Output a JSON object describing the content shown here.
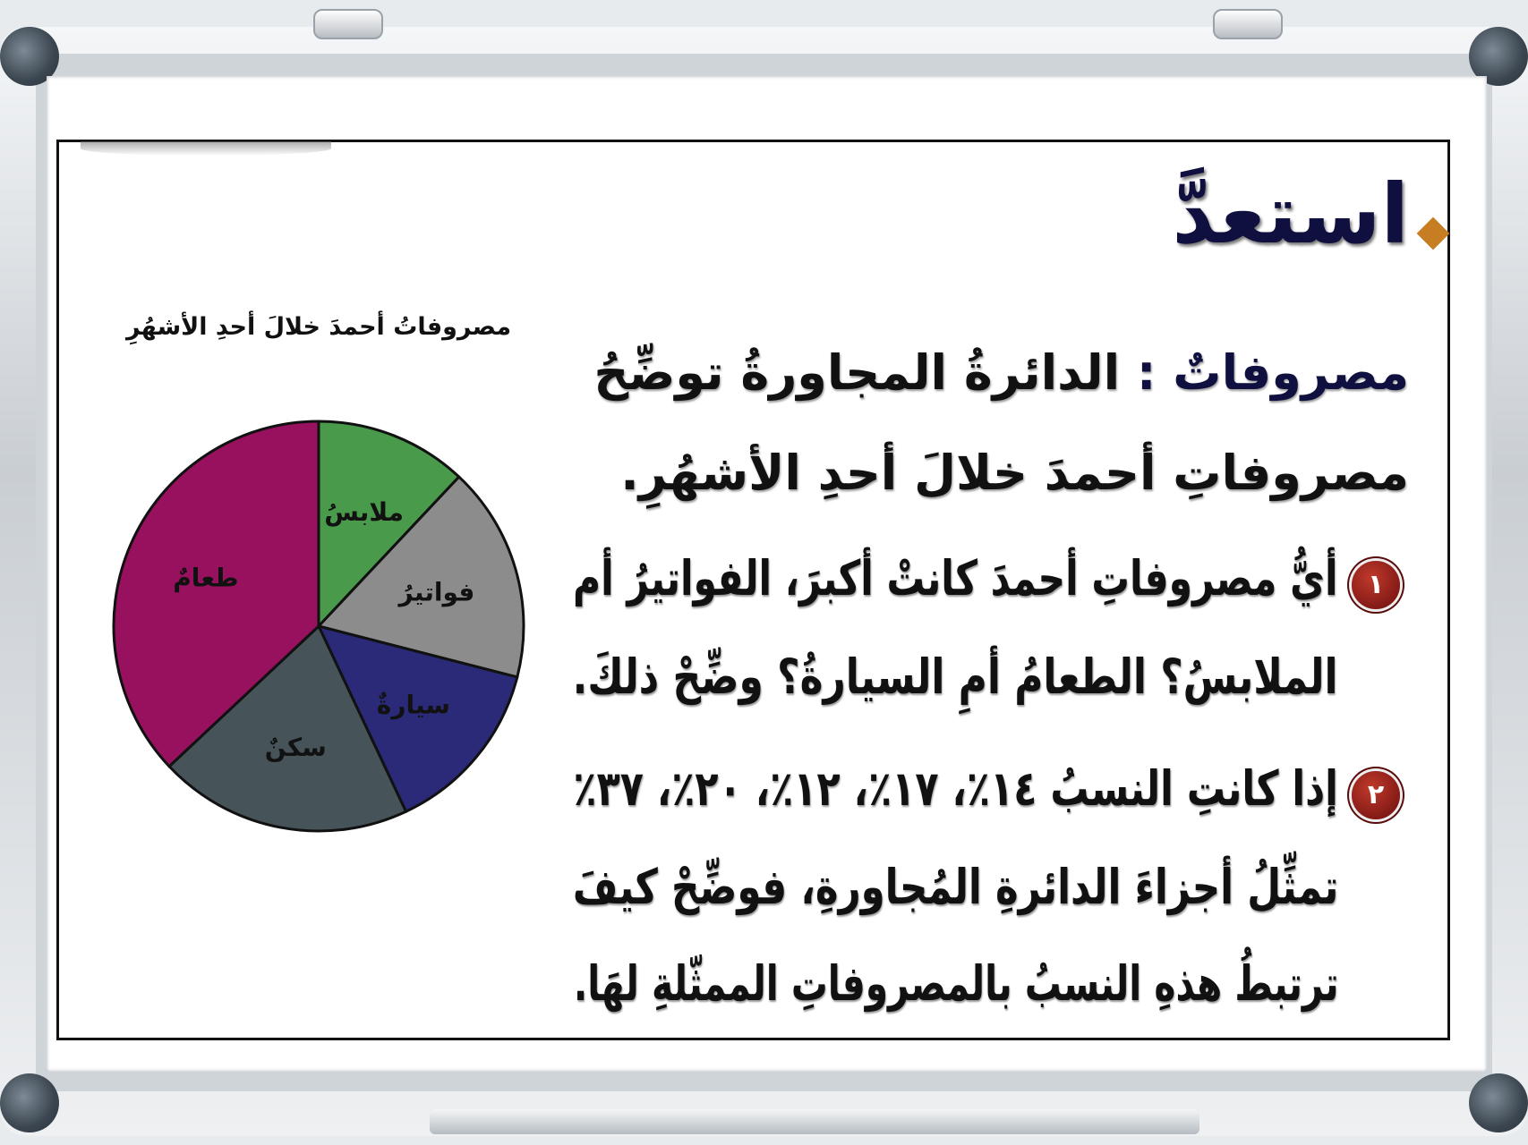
{
  "heading": "استعدَّ",
  "intro": {
    "keyword": "مصروفاتٌ :",
    "line1_rest": "الدائرةُ المجاورةُ توضِّحُ",
    "line2": "مصروفاتِ أحمدَ خلالَ أحدِ الأشهُرِ."
  },
  "questions": [
    {
      "number": "١",
      "lines": [
        "أيُّ مصروفاتِ أحمدَ كانتْ أكبرَ، الفواتيرُ أم",
        "الملابسُ؟ الطعامُ أمِ السيارةُ؟ وضِّحْ ذلكَ."
      ]
    },
    {
      "number": "٢",
      "lines": [
        "إذا كانتِ النسبُ ١٤٪، ١٧٪، ١٢٪، ٢٠٪، ٣٧٪",
        "تمثِّلُ أجزاءَ الدائرةِ المُجاورةِ، فوضِّحْ كيفَ",
        "ترتبطُ هذهِ النسبُ بالمصروفاتِ الممثّلةِ لهَا."
      ]
    }
  ],
  "chart_data": {
    "type": "pie",
    "title": "مصروفاتُ أحمدَ خلالَ أحدِ الأشهُرِ",
    "start": "top, clockwise",
    "slices": [
      {
        "label": "ملابسُ",
        "value": 12,
        "color": "#4a9a4c"
      },
      {
        "label": "فواتيرُ",
        "value": 17,
        "color": "#8c8c8c"
      },
      {
        "label": "سيارةٌ",
        "value": 14,
        "color": "#2a2a78"
      },
      {
        "label": "سكنٌ",
        "value": 20,
        "color": "#46545a"
      },
      {
        "label": "طعامٌ",
        "value": 37,
        "color": "#98115e"
      }
    ]
  }
}
